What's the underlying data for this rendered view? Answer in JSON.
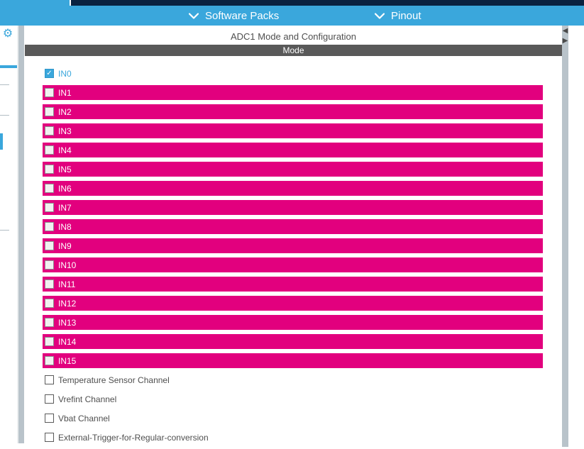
{
  "topbar": {
    "items": [
      {
        "label": "Software Packs"
      },
      {
        "label": "Pinout"
      }
    ]
  },
  "panel": {
    "title": "ADC1 Mode and Configuration",
    "section_header": "Mode"
  },
  "mode_list": {
    "checked_channels": [
      "IN0"
    ],
    "unavailable_channels": [
      "IN1",
      "IN2",
      "IN3",
      "IN4",
      "IN5",
      "IN6",
      "IN7",
      "IN8",
      "IN9",
      "IN10",
      "IN11",
      "IN12",
      "IN13",
      "IN14",
      "IN15"
    ],
    "unchecked_channels": [
      "Temperature Sensor Channel",
      "Vrefint Channel",
      "Vbat Channel",
      "External-Trigger-for-Regular-conversion"
    ]
  },
  "icons": {
    "gear-icon": "⚙",
    "chevron-down-icon": "⌄",
    "collapse-left-icon": "◀",
    "collapse-right-icon": "▶",
    "checkmark-icon": "✓"
  },
  "colors": {
    "accent_blue": "#3aa7dc",
    "navy": "#0a2240",
    "magenta": "#e2007e",
    "section_gray": "#595959",
    "scrollbar_gray": "#b9c3ca"
  }
}
